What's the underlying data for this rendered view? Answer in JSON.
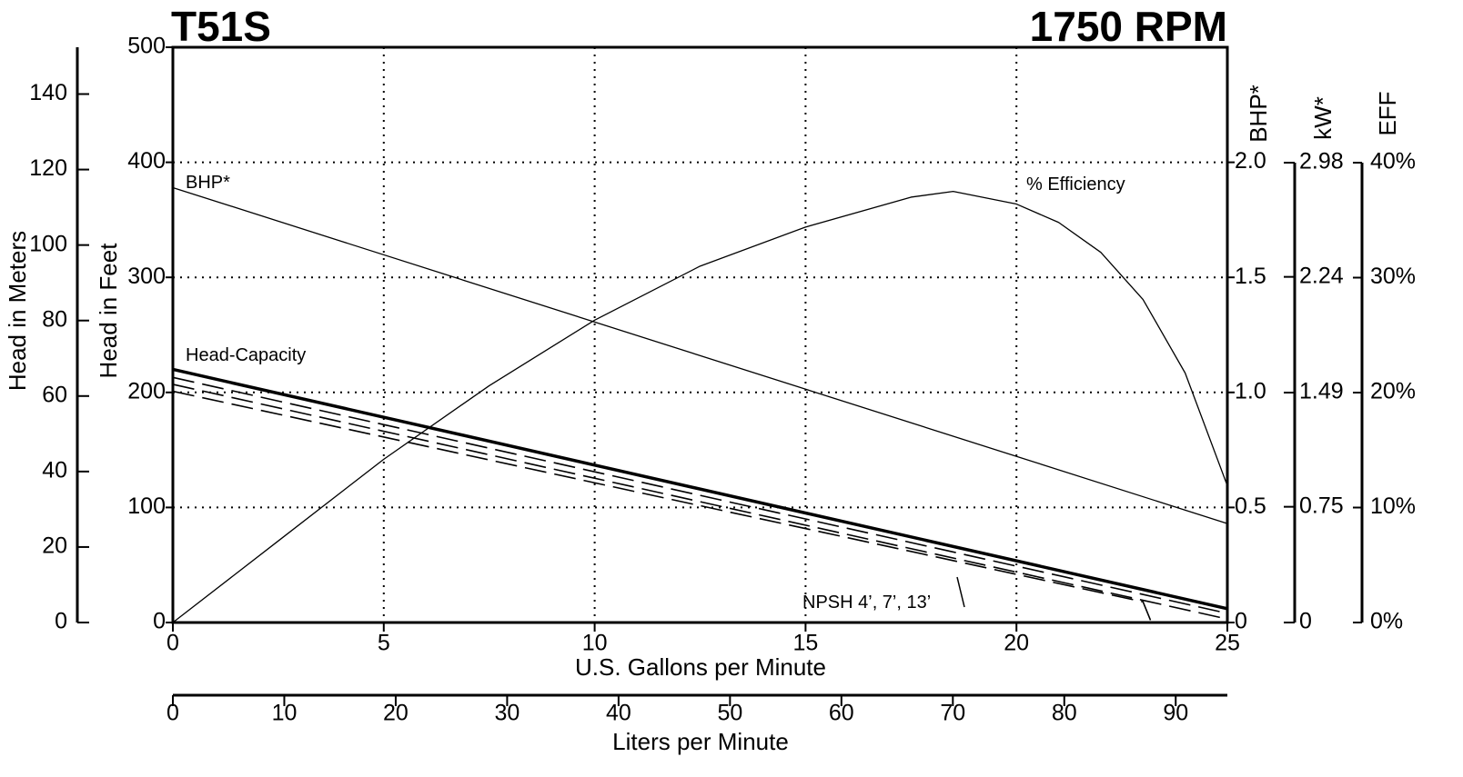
{
  "chart_data": {
    "type": "line",
    "title": "T51S",
    "subtitle": "1750 RPM",
    "xlabel": "U.S. Gallons per Minute",
    "xlim": [
      0,
      25
    ],
    "xticks": [
      0,
      5,
      10,
      15,
      20,
      25
    ],
    "x2label": "Liters per Minute",
    "x2lim": [
      0,
      94.635
    ],
    "x2ticks": [
      0,
      10,
      20,
      30,
      40,
      50,
      60,
      70,
      80,
      90
    ],
    "ylabel": "Head in Feet",
    "ylim": [
      0,
      500
    ],
    "yticks": [
      0,
      100,
      200,
      300,
      400,
      500
    ],
    "ymlabel": "Head in Meters",
    "ymlim": [
      0,
      152.4
    ],
    "ymticks": [
      0,
      20,
      40,
      60,
      80,
      100,
      120,
      140
    ],
    "y2label": "BHP*",
    "y2lim": [
      0,
      2.5
    ],
    "y2ticks": [
      0,
      0.5,
      {
        "value": 1,
        "label": "1.0"
      },
      1.5,
      {
        "value": 2,
        "label": "2.0"
      }
    ],
    "y3label": "kW*",
    "y3lim": [
      0,
      2.98
    ],
    "y3ticks": [
      0,
      0.75,
      1.49,
      2.24,
      2.98
    ],
    "y4label": "EFF",
    "y4lim": [
      0,
      40
    ],
    "y4ticks": [
      {
        "value": 0,
        "label": "0%"
      },
      {
        "value": 10,
        "label": "10%"
      },
      {
        "value": 20,
        "label": "20%"
      },
      {
        "value": 30,
        "label": "30%"
      },
      {
        "value": 40,
        "label": "40%"
      }
    ],
    "grid": true,
    "annotations": [
      "BHP*",
      "Head-Capacity",
      "% Efficiency",
      "NPSH 4’, 7’, 13’"
    ],
    "series": [
      {
        "axis": "y",
        "color": "#000000",
        "line_style": "solid",
        "line_width": 3.5,
        "x": [
          0,
          25
        ],
        "values": [
          220,
          12
        ]
      },
      {
        "axis": "y",
        "color": "#000000",
        "line_style": "dashed",
        "line_width": 1.6,
        "x": [
          0,
          25
        ],
        "values": [
          213,
          8
        ]
      },
      {
        "axis": "y",
        "color": "#000000",
        "line_style": "dashed",
        "line_width": 1.6,
        "x": [
          0,
          25
        ],
        "values": [
          207,
          3
        ]
      },
      {
        "axis": "y",
        "color": "#000000",
        "line_style": "dashed",
        "line_width": 1.6,
        "x": [
          0,
          23,
          23.2
        ],
        "values": [
          201,
          18,
          0
        ]
      },
      {
        "axis": "y2",
        "color": "#000000",
        "line_style": "solid",
        "line_width": 1.3,
        "x": [
          0,
          25
        ],
        "values": [
          1.89,
          0.43
        ]
      },
      {
        "axis": "y4",
        "color": "#000000",
        "line_style": "solid",
        "line_width": 1.3,
        "x": [
          0,
          2.5,
          5,
          7.5,
          10,
          12.5,
          15,
          17.5,
          18.5,
          20,
          21,
          22,
          23,
          24,
          25
        ],
        "values": [
          0,
          7.1,
          14.2,
          20.6,
          26.3,
          31.0,
          34.4,
          37.0,
          37.5,
          36.4,
          34.8,
          32.2,
          28.1,
          21.7,
          11.9
        ]
      }
    ]
  }
}
